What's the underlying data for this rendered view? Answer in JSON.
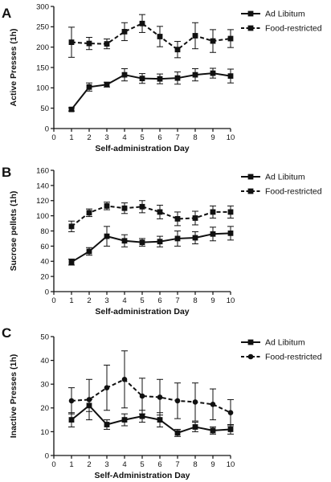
{
  "figure": {
    "marker_color": "#111111",
    "background": "#ffffff"
  },
  "chart_data": [
    {
      "panel_label": "A",
      "type": "line",
      "xlabel": "Self-administration Day",
      "ylabel": "Active Presses (1h)",
      "xlim": [
        0,
        10
      ],
      "ylim": [
        0,
        300
      ],
      "xticks": [
        0,
        1,
        2,
        3,
        4,
        5,
        6,
        7,
        8,
        9,
        10
      ],
      "yticks": [
        0,
        50,
        100,
        150,
        200,
        250,
        300
      ],
      "marker": "square",
      "legend_position": "top-right",
      "x": [
        1,
        2,
        3,
        4,
        5,
        6,
        7,
        8,
        9,
        10
      ],
      "series": [
        {
          "name": "Ad Libitum",
          "line": "solid",
          "values": [
            47,
            102,
            108,
            132,
            123,
            122,
            124,
            132,
            136,
            129
          ],
          "errors": [
            4,
            10,
            6,
            15,
            12,
            12,
            15,
            15,
            12,
            17
          ]
        },
        {
          "name": "Food-restricted",
          "line": "dashed",
          "values": [
            212,
            209,
            208,
            238,
            258,
            226,
            194,
            228,
            215,
            221
          ],
          "errors": [
            37,
            15,
            12,
            22,
            22,
            25,
            20,
            32,
            28,
            22
          ]
        }
      ]
    },
    {
      "panel_label": "B",
      "type": "line",
      "xlabel": "Self-administration Day",
      "ylabel": "Sucrose pellets (1h)",
      "xlim": [
        0,
        10
      ],
      "ylim": [
        0,
        160
      ],
      "xticks": [
        0,
        1,
        2,
        3,
        4,
        5,
        6,
        7,
        8,
        9,
        10
      ],
      "yticks": [
        0,
        20,
        40,
        60,
        80,
        100,
        120,
        140,
        160
      ],
      "marker": "square",
      "legend_position": "top-right",
      "x": [
        1,
        2,
        3,
        4,
        5,
        6,
        7,
        8,
        9,
        10
      ],
      "series": [
        {
          "name": "Ad Libitum",
          "line": "solid",
          "values": [
            39,
            53,
            73,
            67,
            65,
            66,
            70,
            71,
            76,
            77
          ],
          "errors": [
            4,
            5,
            13,
            8,
            5,
            7,
            10,
            8,
            9,
            9
          ]
        },
        {
          "name": "Food-restricted",
          "line": "dashed",
          "values": [
            86,
            104,
            113,
            110,
            112,
            105,
            96,
            97,
            105,
            105
          ],
          "errors": [
            7,
            5,
            5,
            7,
            8,
            9,
            9,
            9,
            8,
            8
          ]
        }
      ]
    },
    {
      "panel_label": "C",
      "type": "line",
      "xlabel": "Self-Administration Day",
      "ylabel": "Inactive Presses (1h)",
      "xlim": [
        0,
        10
      ],
      "ylim": [
        0,
        50
      ],
      "xticks": [
        0,
        1,
        2,
        3,
        4,
        5,
        6,
        7,
        8,
        9,
        10
      ],
      "yticks": [
        0,
        10,
        20,
        30,
        40,
        50
      ],
      "legend_position": "top-right",
      "x": [
        1,
        2,
        3,
        4,
        5,
        6,
        7,
        8,
        9,
        10
      ],
      "series": [
        {
          "name": "Ad Libitum",
          "line": "solid",
          "marker": "square",
          "values": [
            15,
            21,
            13,
            15,
            16.5,
            15,
            9.5,
            12,
            10.5,
            11
          ],
          "errors": [
            3,
            2.5,
            2,
            2.5,
            2.5,
            3,
            1.5,
            2,
            1.5,
            2
          ]
        },
        {
          "name": "Food-restricted",
          "line": "dashed",
          "marker": "circle",
          "values": [
            23,
            23.5,
            28.5,
            32,
            25,
            24.5,
            23,
            22.5,
            21.5,
            18
          ],
          "errors": [
            5.5,
            8.5,
            9.5,
            12,
            7.5,
            7.5,
            7.5,
            8,
            6.5,
            5.5
          ]
        }
      ]
    }
  ]
}
